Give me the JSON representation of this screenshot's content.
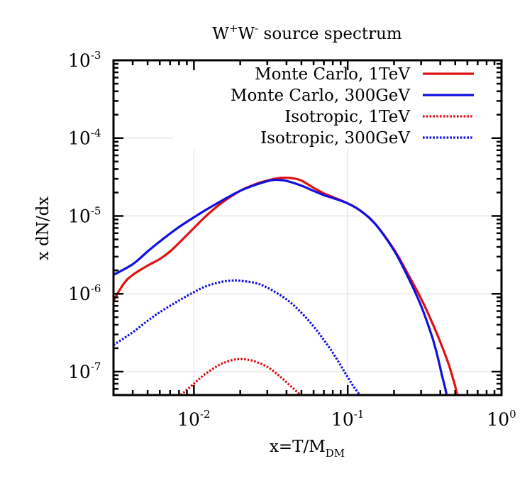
{
  "chart_data": {
    "type": "line",
    "title": {
      "base1": "W",
      "sup1": "+",
      "base2": "W",
      "sup2": "-",
      "rest": " source spectrum"
    },
    "xlabel": {
      "base": "x=T/M",
      "sub": "DM"
    },
    "ylabel": "x dN/dx",
    "x_scale": "log",
    "y_scale": "log",
    "xlim": [
      0.003,
      1
    ],
    "ylim": [
      5e-08,
      0.001
    ],
    "grid": true,
    "legend_position": "top-right",
    "x_ticks": [
      {
        "value": 0.01,
        "base": "10",
        "exp": "-2"
      },
      {
        "value": 0.1,
        "base": "10",
        "exp": "-1"
      },
      {
        "value": 1,
        "base": "10",
        "exp": "0"
      }
    ],
    "y_ticks": [
      {
        "value": 0.001,
        "base": "10",
        "exp": "-3"
      },
      {
        "value": 0.0001,
        "base": "10",
        "exp": "-4"
      },
      {
        "value": 1e-05,
        "base": "10",
        "exp": "-5"
      },
      {
        "value": 1e-06,
        "base": "10",
        "exp": "-6"
      },
      {
        "value": 1e-07,
        "base": "10",
        "exp": "-7"
      }
    ],
    "series": [
      {
        "name": "Monte Carlo, 1TeV",
        "color": "#e01010",
        "style": "solid",
        "points": [
          [
            0.003,
            8.2e-07
          ],
          [
            0.0035,
            1.35e-06
          ],
          [
            0.004,
            1.75e-06
          ],
          [
            0.005,
            2.3e-06
          ],
          [
            0.006,
            2.8e-06
          ],
          [
            0.007,
            3.5e-06
          ],
          [
            0.008,
            4.5e-06
          ],
          [
            0.01,
            7e-06
          ],
          [
            0.012,
            1e-05
          ],
          [
            0.015,
            1.45e-05
          ],
          [
            0.02,
            2.1e-05
          ],
          [
            0.025,
            2.55e-05
          ],
          [
            0.03,
            2.85e-05
          ],
          [
            0.035,
            3.05e-05
          ],
          [
            0.04,
            3.1e-05
          ],
          [
            0.045,
            3.02e-05
          ],
          [
            0.05,
            2.85e-05
          ],
          [
            0.06,
            2.3e-05
          ],
          [
            0.07,
            1.95e-05
          ],
          [
            0.08,
            1.75e-05
          ],
          [
            0.1,
            1.45e-05
          ],
          [
            0.12,
            1.18e-05
          ],
          [
            0.15,
            8e-06
          ],
          [
            0.2,
            3.7e-06
          ],
          [
            0.25,
            1.7e-06
          ],
          [
            0.3,
            8.7e-07
          ],
          [
            0.35,
            4.5e-07
          ],
          [
            0.4,
            2.4e-07
          ],
          [
            0.45,
            1.3e-07
          ],
          [
            0.48,
            8.6e-08
          ],
          [
            0.5,
            6.5e-08
          ],
          [
            0.515,
            5e-08
          ]
        ]
      },
      {
        "name": "Monte Carlo, 300GeV",
        "color": "#1010e0",
        "style": "solid",
        "points": [
          [
            0.003,
            1.75e-06
          ],
          [
            0.004,
            2.4e-06
          ],
          [
            0.005,
            3.5e-06
          ],
          [
            0.006,
            4.7e-06
          ],
          [
            0.008,
            7.2e-06
          ],
          [
            0.01,
            9.6e-06
          ],
          [
            0.012,
            1.2e-05
          ],
          [
            0.015,
            1.55e-05
          ],
          [
            0.02,
            2.1e-05
          ],
          [
            0.025,
            2.5e-05
          ],
          [
            0.03,
            2.8e-05
          ],
          [
            0.033,
            2.9e-05
          ],
          [
            0.036,
            2.9e-05
          ],
          [
            0.04,
            2.82e-05
          ],
          [
            0.05,
            2.45e-05
          ],
          [
            0.06,
            2.1e-05
          ],
          [
            0.07,
            1.85e-05
          ],
          [
            0.08,
            1.7e-05
          ],
          [
            0.1,
            1.45e-05
          ],
          [
            0.12,
            1.18e-05
          ],
          [
            0.15,
            8e-06
          ],
          [
            0.2,
            3.6e-06
          ],
          [
            0.25,
            1.55e-06
          ],
          [
            0.3,
            7e-07
          ],
          [
            0.35,
            3e-07
          ],
          [
            0.38,
            1.7e-07
          ],
          [
            0.41,
            9e-08
          ],
          [
            0.43,
            6.2e-08
          ],
          [
            0.44,
            5e-08
          ]
        ]
      },
      {
        "name": "Isotropic, 1TeV",
        "color": "#e01010",
        "style": "dotted",
        "points": [
          [
            0.0082,
            5e-08
          ],
          [
            0.01,
            7e-08
          ],
          [
            0.012,
            9.5e-08
          ],
          [
            0.015,
            1.25e-07
          ],
          [
            0.018,
            1.42e-07
          ],
          [
            0.02,
            1.45e-07
          ],
          [
            0.022,
            1.43e-07
          ],
          [
            0.025,
            1.35e-07
          ],
          [
            0.03,
            1.15e-07
          ],
          [
            0.035,
            9.2e-08
          ],
          [
            0.04,
            7.3e-08
          ],
          [
            0.045,
            5.9e-08
          ],
          [
            0.0495,
            5e-08
          ]
        ]
      },
      {
        "name": "Isotropic, 300GeV",
        "color": "#1010e0",
        "style": "dotted",
        "points": [
          [
            0.003,
            2.2e-07
          ],
          [
            0.004,
            3.2e-07
          ],
          [
            0.005,
            4.5e-07
          ],
          [
            0.006,
            5.8e-07
          ],
          [
            0.008,
            8.2e-07
          ],
          [
            0.01,
            1.05e-06
          ],
          [
            0.012,
            1.25e-06
          ],
          [
            0.015,
            1.42e-06
          ],
          [
            0.018,
            1.48e-06
          ],
          [
            0.02,
            1.47e-06
          ],
          [
            0.025,
            1.38e-06
          ],
          [
            0.03,
            1.2e-06
          ],
          [
            0.04,
            8.5e-07
          ],
          [
            0.05,
            5.7e-07
          ],
          [
            0.06,
            3.8e-07
          ],
          [
            0.07,
            2.55e-07
          ],
          [
            0.08,
            1.75e-07
          ],
          [
            0.09,
            1.2e-07
          ],
          [
            0.1,
            8.5e-08
          ],
          [
            0.11,
            6.3e-08
          ],
          [
            0.12,
            5e-08
          ]
        ]
      }
    ]
  }
}
